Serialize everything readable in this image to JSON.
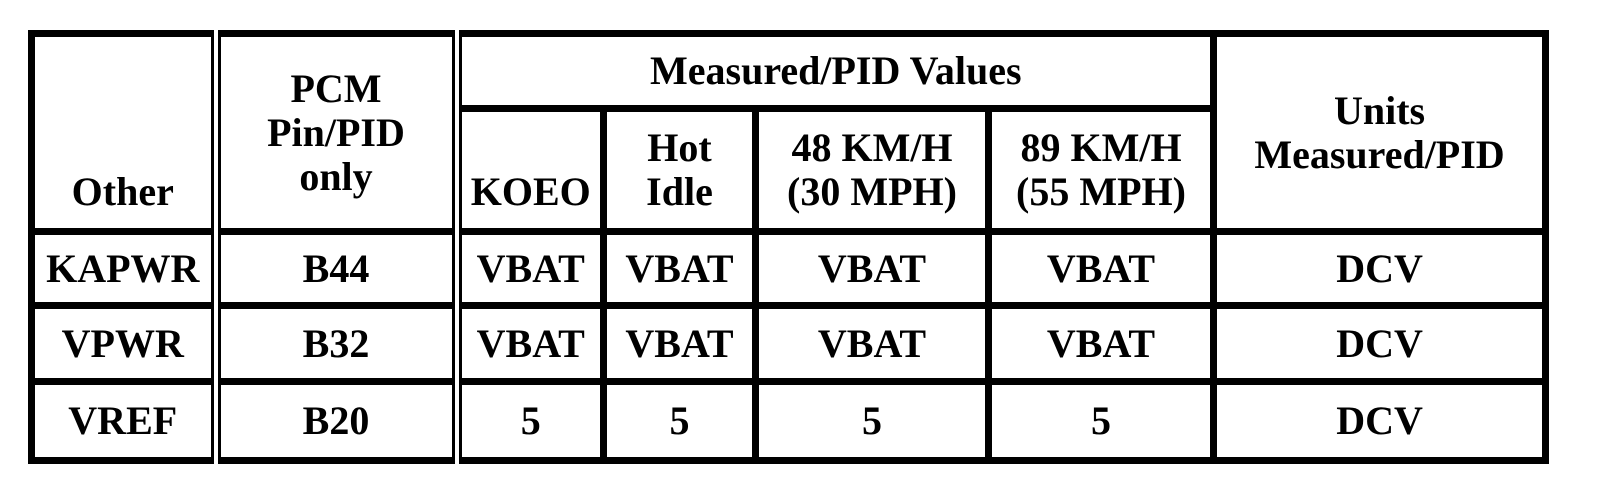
{
  "table": {
    "header": {
      "other": "Other",
      "pcm": "PCM\nPin/PID\nonly",
      "group": "Measured/PID Values",
      "sub": [
        "KOEO",
        "Hot\nIdle",
        "48 KM/H\n(30 MPH)",
        "89 KM/H\n(55 MPH)"
      ],
      "units": "Units\nMeasured/PID"
    },
    "rows": [
      [
        "KAPWR",
        "B44",
        "VBAT",
        "VBAT",
        "VBAT",
        "VBAT",
        "DCV"
      ],
      [
        "VPWR",
        "B32",
        "VBAT",
        "VBAT",
        "VBAT",
        "VBAT",
        "DCV"
      ],
      [
        "VREF",
        "B20",
        5,
        5,
        5,
        5,
        "DCV"
      ]
    ]
  }
}
